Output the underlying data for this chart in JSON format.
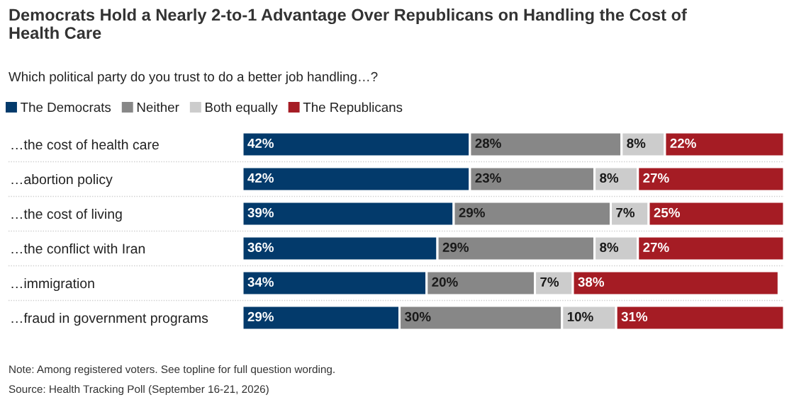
{
  "chart_data": {
    "type": "bar",
    "orientation": "horizontal",
    "stacked": true,
    "title": "Democrats Hold a Nearly 2-to-1 Advantage Over Republicans on Handling the Cost of Health Care",
    "subtitle": "Which political party do you trust to do a better job handling…?",
    "categories": [
      "…the cost of health care",
      "…abortion policy",
      "…the cost of living",
      "…the conflict with Iran",
      "…immigration",
      "…fraud in government programs"
    ],
    "series": [
      {
        "name": "The Democrats",
        "color": "#033a6b",
        "values": [
          42,
          42,
          39,
          36,
          34,
          29
        ],
        "value_labels": [
          "42%",
          "42%",
          "39%",
          "36%",
          "34%",
          "29%"
        ]
      },
      {
        "name": "Neither",
        "color": "#878787",
        "values": [
          28,
          23,
          29,
          29,
          20,
          30
        ],
        "value_labels": [
          "28%",
          "23%",
          "29%",
          "29%",
          "20%",
          "30%"
        ]
      },
      {
        "name": "Both equally",
        "color": "#cccccc",
        "values": [
          8,
          8,
          7,
          8,
          7,
          10
        ],
        "value_labels": [
          "8%",
          "8%",
          "7%",
          "8%",
          "7%",
          "10%"
        ]
      },
      {
        "name": "The Republicans",
        "color": "#a51c24",
        "values": [
          22,
          27,
          25,
          27,
          38,
          31
        ],
        "value_labels": [
          "22%",
          "27%",
          "25%",
          "27%",
          "38%",
          "31%"
        ]
      }
    ],
    "xlim": [
      0,
      100
    ],
    "tick_labels": "y",
    "grid": "y",
    "legend": "top left",
    "annotations": [
      "Note: Among registered voters. See topline for full question wording.",
      "Source: Health Tracking Poll (September 16-21, 2026)"
    ]
  }
}
